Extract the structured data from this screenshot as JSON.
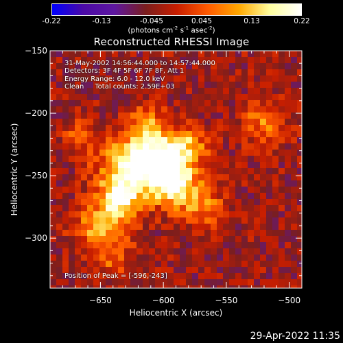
{
  "chart_data": {
    "type": "heatmap",
    "title": "Reconstructed RHESSI Image",
    "xlabel": "Heliocentric X (arcsec)",
    "ylabel": "Heliocentric Y (arcsec)",
    "xlim": [
      -690,
      -490
    ],
    "ylim": [
      -340,
      -150
    ],
    "x_ticks": [
      -650,
      -600,
      -550,
      -500
    ],
    "y_ticks": [
      -150,
      -200,
      -250,
      -300
    ],
    "colorbar": {
      "range": [
        -0.22,
        0.22
      ],
      "ticks": [
        "-0.22",
        "-0.13",
        "-0.045",
        "0.045",
        "0.13",
        "0.22"
      ],
      "unit_parts": [
        "(photons cm",
        "-2",
        " s",
        "-1",
        " asec",
        "-2",
        ")"
      ],
      "colormap": [
        "#0000ff",
        "#4b0aa6",
        "#5e17a0",
        "#7a1e1e",
        "#c81e00",
        "#ff5a00",
        "#ffa800",
        "#ffffa0",
        "#ffffff"
      ]
    },
    "peak_position": [
      -596,
      -243
    ],
    "info_lines": [
      "31-May-2002 14:56:44.000 to 14:57:44.000",
      "Detectors: 3F 4F 5F 6F 7F 8F, Att 1",
      "Energy Range: 6.0 - 12.0 keV",
      "Clean     Total counts: 2.59E+03"
    ],
    "peak_label": "Position of Peak = [-596,-243]"
  },
  "timestamp": "29-Apr-2022 11:35"
}
